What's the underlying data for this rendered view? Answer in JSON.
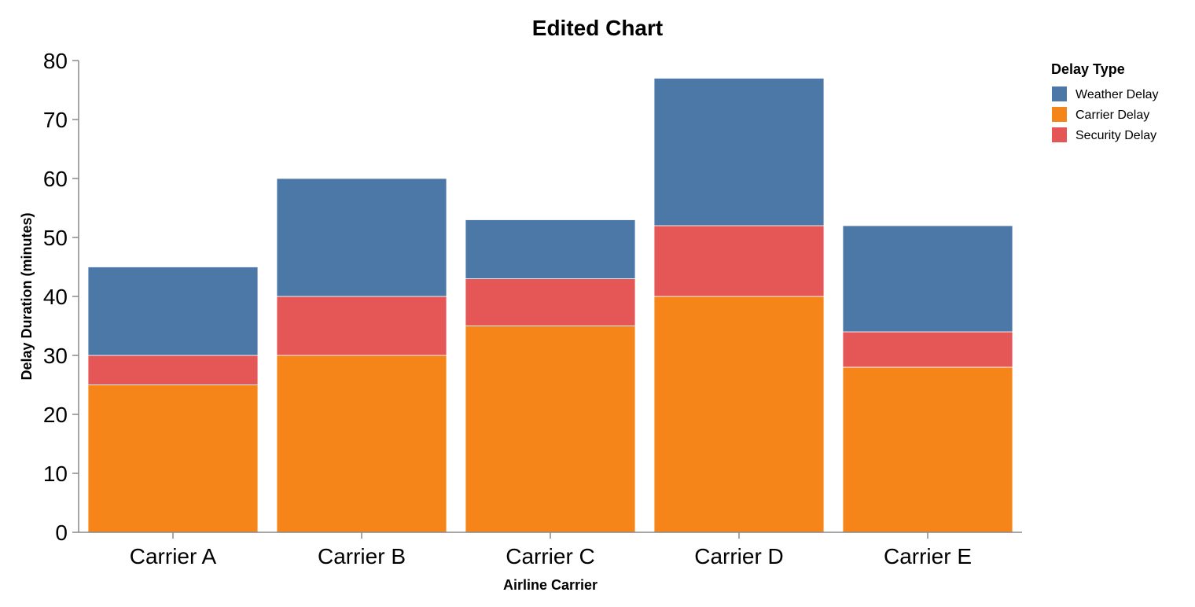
{
  "chart_data": {
    "type": "bar",
    "stacked": true,
    "title": "Edited Chart",
    "xlabel": "Airline Carrier",
    "ylabel": "Delay Duration (minutes)",
    "ylim": [
      0,
      80
    ],
    "yticks": [
      "0",
      "10",
      "20",
      "30",
      "40",
      "50",
      "60",
      "70",
      "80"
    ],
    "grid": false,
    "categories": [
      "Carrier A",
      "Carrier B",
      "Carrier C",
      "Carrier D",
      "Carrier E"
    ],
    "series": [
      {
        "name": "Carrier Delay",
        "color": "#f58518",
        "values": [
          25,
          30,
          35,
          40,
          28
        ]
      },
      {
        "name": "Security Delay",
        "color": "#e45756",
        "values": [
          5,
          10,
          8,
          12,
          6
        ]
      },
      {
        "name": "Weather Delay",
        "color": "#4c78a8",
        "values": [
          15,
          20,
          10,
          25,
          18
        ]
      }
    ],
    "legend": {
      "title": "Delay Type",
      "placement": "top-right",
      "entries": [
        {
          "label": "Weather Delay",
          "color": "#4c78a8"
        },
        {
          "label": "Carrier Delay",
          "color": "#f58518"
        },
        {
          "label": "Security Delay",
          "color": "#e45756"
        }
      ]
    }
  }
}
